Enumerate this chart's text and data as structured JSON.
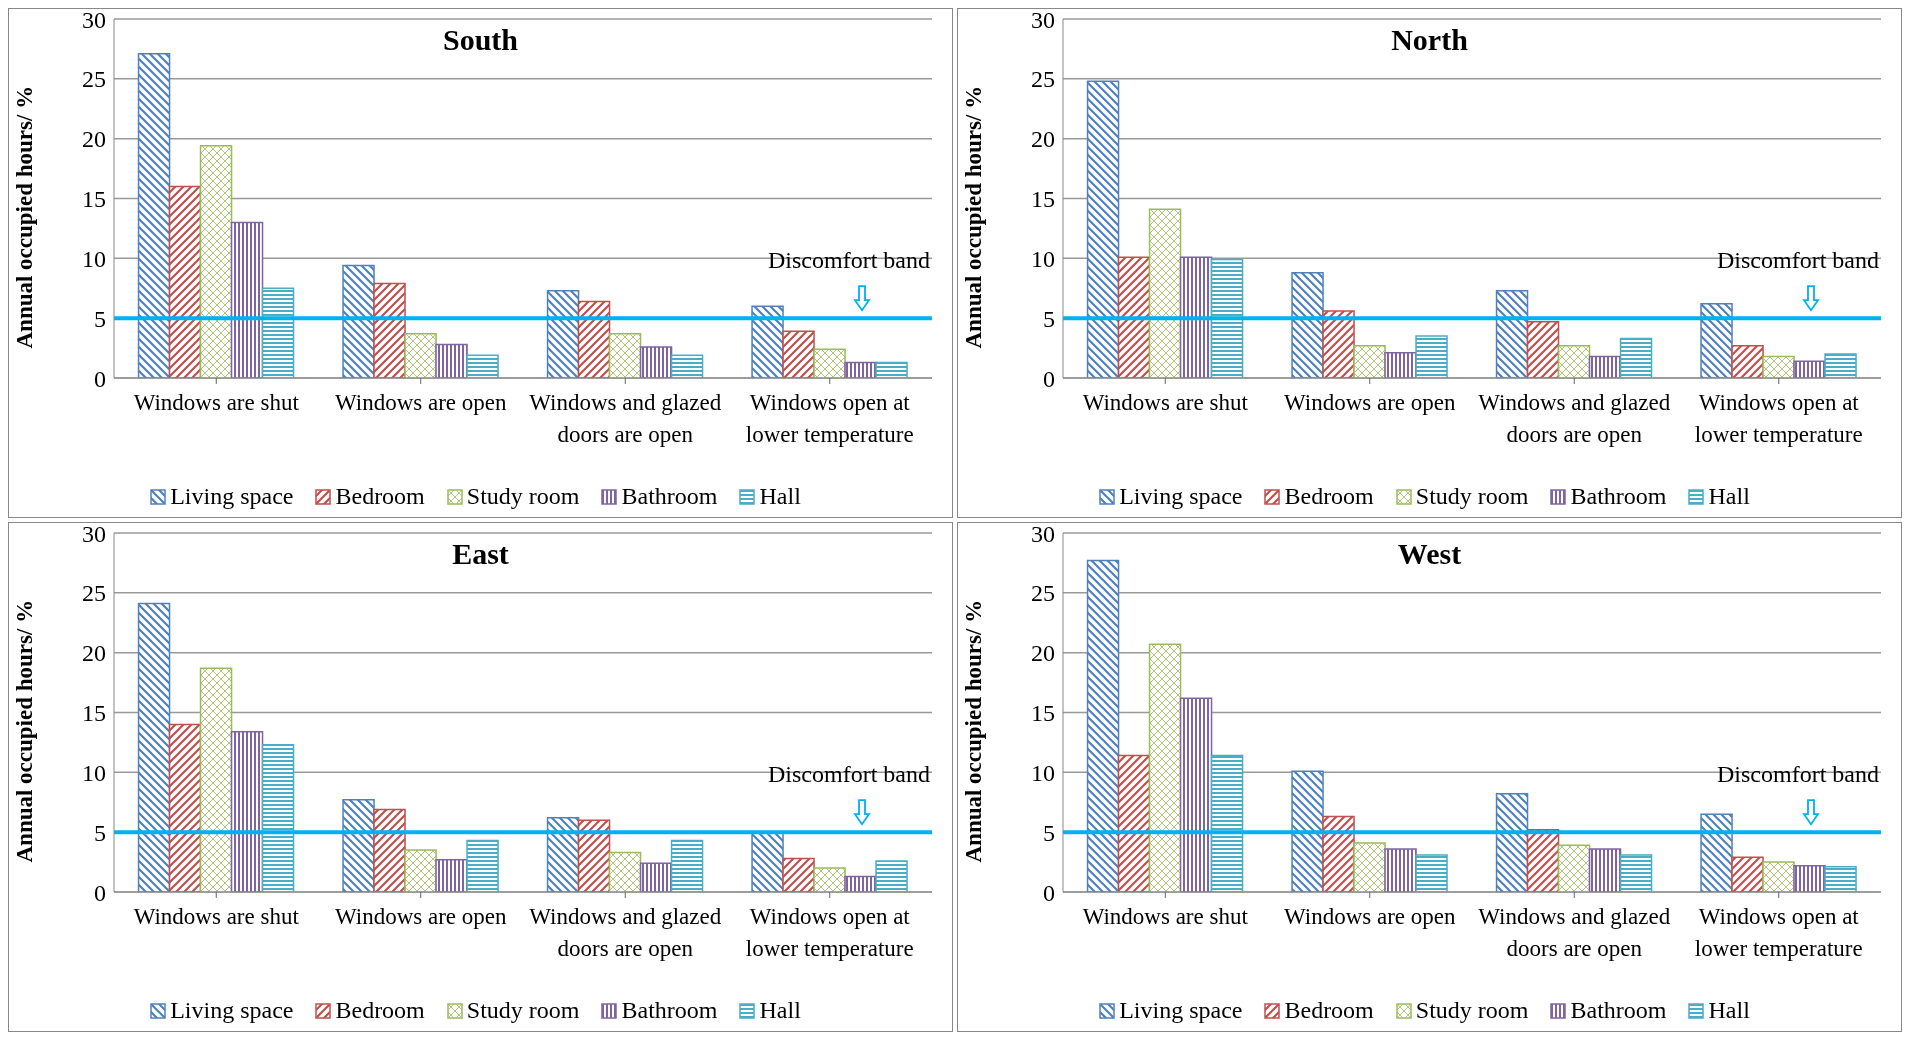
{
  "chart_data": [
    {
      "type": "bar",
      "title": "South",
      "ylabel": "Annual occupied hours/ %",
      "categories": [
        "Windows are shut",
        "Windows are open",
        "Windows and glazed doors are open",
        "Windows open at lower temperature"
      ],
      "ylim": [
        0,
        30
      ],
      "yticks": [
        0,
        5,
        10,
        15,
        20,
        25,
        30
      ],
      "grid": "y",
      "legend": "bottom",
      "series": [
        {
          "name": "Living space",
          "color": "#4f81bd",
          "values": [
            27.1,
            9.4,
            7.3,
            6.0
          ]
        },
        {
          "name": "Bedroom",
          "color": "#c0504d",
          "values": [
            16.0,
            7.9,
            6.4,
            3.9
          ]
        },
        {
          "name": "Study room",
          "color": "#9bbb59",
          "values": [
            19.4,
            3.7,
            3.7,
            2.4
          ]
        },
        {
          "name": "Bathroom",
          "color": "#8064a2",
          "values": [
            13.0,
            2.8,
            2.6,
            1.3
          ]
        },
        {
          "name": "Hall",
          "color": "#4bacc6",
          "values": [
            7.5,
            1.9,
            1.9,
            1.3
          ]
        }
      ],
      "ref_lines": [
        {
          "axis": "y",
          "value": 5,
          "label": "Discomfort band",
          "color": "#00b0f0"
        }
      ]
    },
    {
      "type": "bar",
      "title": "North",
      "ylabel": "Annual occupied hours/ %",
      "categories": [
        "Windows are shut",
        "Windows are open",
        "Windows and glazed doors are open",
        "Windows open at lower temperature"
      ],
      "ylim": [
        0,
        30
      ],
      "yticks": [
        0,
        5,
        10,
        15,
        20,
        25,
        30
      ],
      "grid": "y",
      "legend": "bottom",
      "series": [
        {
          "name": "Living space",
          "color": "#4f81bd",
          "values": [
            24.8,
            8.8,
            7.3,
            6.2
          ]
        },
        {
          "name": "Bedroom",
          "color": "#c0504d",
          "values": [
            10.1,
            5.6,
            4.7,
            2.7
          ]
        },
        {
          "name": "Study room",
          "color": "#9bbb59",
          "values": [
            14.1,
            2.7,
            2.7,
            1.8
          ]
        },
        {
          "name": "Bathroom",
          "color": "#8064a2",
          "values": [
            10.1,
            2.1,
            1.8,
            1.4
          ]
        },
        {
          "name": "Hall",
          "color": "#4bacc6",
          "values": [
            9.9,
            3.5,
            3.3,
            2.0
          ]
        }
      ],
      "ref_lines": [
        {
          "axis": "y",
          "value": 5,
          "label": "Discomfort band",
          "color": "#00b0f0"
        }
      ]
    },
    {
      "type": "bar",
      "title": "East",
      "ylabel": "Annual occupied hours/ %",
      "categories": [
        "Windows are shut",
        "Windows are open",
        "Windows and glazed doors are open",
        "Windows open at lower temperature"
      ],
      "ylim": [
        0,
        30
      ],
      "yticks": [
        0,
        5,
        10,
        15,
        20,
        25,
        30
      ],
      "grid": "y",
      "legend": "bottom",
      "series": [
        {
          "name": "Living space",
          "color": "#4f81bd",
          "values": [
            24.1,
            7.7,
            6.2,
            4.9
          ]
        },
        {
          "name": "Bedroom",
          "color": "#c0504d",
          "values": [
            14.0,
            6.9,
            6.0,
            2.8
          ]
        },
        {
          "name": "Study room",
          "color": "#9bbb59",
          "values": [
            18.7,
            3.5,
            3.3,
            2.0
          ]
        },
        {
          "name": "Bathroom",
          "color": "#8064a2",
          "values": [
            13.4,
            2.7,
            2.4,
            1.3
          ]
        },
        {
          "name": "Hall",
          "color": "#4bacc6",
          "values": [
            12.3,
            4.3,
            4.3,
            2.6
          ]
        }
      ],
      "ref_lines": [
        {
          "axis": "y",
          "value": 5,
          "label": "Discomfort band",
          "color": "#00b0f0"
        }
      ]
    },
    {
      "type": "bar",
      "title": "West",
      "ylabel": "Annual occupied hours/ %",
      "categories": [
        "Windows are shut",
        "Windows are open",
        "Windows and glazed doors are open",
        "Windows open at lower temperature"
      ],
      "ylim": [
        0,
        30
      ],
      "yticks": [
        0,
        5,
        10,
        15,
        20,
        25,
        30
      ],
      "grid": "y",
      "legend": "bottom",
      "series": [
        {
          "name": "Living space",
          "color": "#4f81bd",
          "values": [
            27.7,
            10.1,
            8.2,
            6.5
          ]
        },
        {
          "name": "Bedroom",
          "color": "#c0504d",
          "values": [
            11.4,
            6.3,
            5.2,
            2.9
          ]
        },
        {
          "name": "Study room",
          "color": "#9bbb59",
          "values": [
            20.7,
            4.1,
            3.9,
            2.5
          ]
        },
        {
          "name": "Bathroom",
          "color": "#8064a2",
          "values": [
            16.2,
            3.6,
            3.6,
            2.2
          ]
        },
        {
          "name": "Hall",
          "color": "#4bacc6",
          "values": [
            11.4,
            3.1,
            3.1,
            2.1
          ]
        }
      ],
      "ref_lines": [
        {
          "axis": "y",
          "value": 5,
          "label": "Discomfort band",
          "color": "#00b0f0"
        }
      ]
    }
  ]
}
